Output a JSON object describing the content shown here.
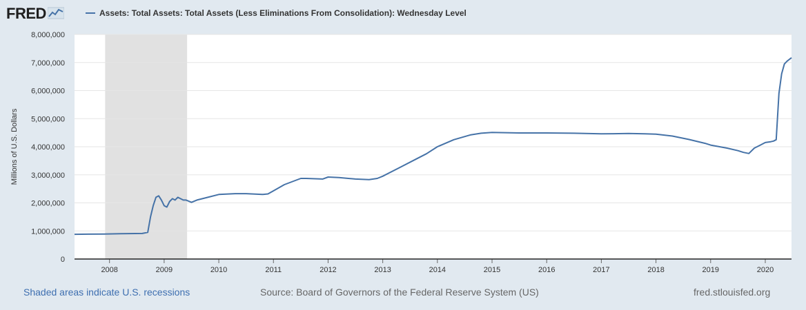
{
  "header": {
    "logo_text": "FRED",
    "logo_icon": "fred-graph-icon",
    "legend_label": "Assets: Total Assets: Total Assets (Less Eliminations From Consolidation): Wednesday Level"
  },
  "footer": {
    "recession_note": "Shaded areas indicate U.S. recessions",
    "source": "Source: Board of Governors of the Federal Reserve System (US)",
    "site": "fred.stlouisfed.org"
  },
  "colors": {
    "background": "#e1e9f0",
    "plot_background": "#ffffff",
    "series": "#4572a7",
    "recession": "#e1e1e1",
    "grid": "#e6e6e6"
  },
  "chart_data": {
    "type": "line",
    "title": "",
    "xlabel": "",
    "ylabel": "Millions of U.S. Dollars",
    "xlim": [
      2007.36,
      2020.48
    ],
    "ylim": [
      0,
      8000000
    ],
    "x_ticks": [
      "2008",
      "2009",
      "2010",
      "2011",
      "2012",
      "2013",
      "2014",
      "2015",
      "2016",
      "2017",
      "2018",
      "2019",
      "2020"
    ],
    "y_ticks": [
      "0",
      "1,000,000",
      "2,000,000",
      "3,000,000",
      "4,000,000",
      "5,000,000",
      "6,000,000",
      "7,000,000",
      "8,000,000"
    ],
    "grid": "horizontal",
    "legend_position": "top-left",
    "recessions": [
      [
        2007.92,
        2009.42
      ]
    ],
    "series": [
      {
        "name": "Assets: Total Assets: Total Assets (Less Eliminations From Consolidation): Wednesday Level",
        "x": [
          2007.36,
          2007.9,
          2008.2,
          2008.6,
          2008.7,
          2008.75,
          2008.8,
          2008.85,
          2008.9,
          2008.95,
          2009.0,
          2009.05,
          2009.1,
          2009.15,
          2009.2,
          2009.25,
          2009.3,
          2009.35,
          2009.4,
          2009.5,
          2009.6,
          2009.7,
          2009.8,
          2010.0,
          2010.3,
          2010.5,
          2010.8,
          2010.9,
          2011.0,
          2011.2,
          2011.5,
          2011.6,
          2011.9,
          2012.0,
          2012.2,
          2012.5,
          2012.75,
          2012.9,
          2013.0,
          2013.3,
          2013.6,
          2013.8,
          2014.0,
          2014.3,
          2014.6,
          2014.8,
          2015.0,
          2015.5,
          2016.0,
          2016.5,
          2017.0,
          2017.5,
          2017.8,
          2018.0,
          2018.3,
          2018.6,
          2018.9,
          2019.0,
          2019.3,
          2019.5,
          2019.6,
          2019.7,
          2019.8,
          2019.9,
          2020.0,
          2020.1,
          2020.15,
          2020.2,
          2020.25,
          2020.3,
          2020.35,
          2020.4,
          2020.48
        ],
        "values": [
          880000,
          890000,
          900000,
          910000,
          950000,
          1500000,
          1900000,
          2200000,
          2250000,
          2100000,
          1900000,
          1850000,
          2050000,
          2150000,
          2100000,
          2200000,
          2150000,
          2100000,
          2100000,
          2020000,
          2100000,
          2150000,
          2200000,
          2300000,
          2330000,
          2330000,
          2300000,
          2320000,
          2430000,
          2650000,
          2870000,
          2870000,
          2850000,
          2920000,
          2900000,
          2850000,
          2830000,
          2870000,
          2950000,
          3250000,
          3550000,
          3750000,
          4000000,
          4250000,
          4420000,
          4480000,
          4510000,
          4490000,
          4490000,
          4480000,
          4460000,
          4470000,
          4460000,
          4450000,
          4380000,
          4260000,
          4120000,
          4060000,
          3950000,
          3860000,
          3800000,
          3760000,
          3950000,
          4050000,
          4150000,
          4180000,
          4200000,
          4250000,
          5900000,
          6600000,
          6950000,
          7050000,
          7170000
        ]
      }
    ]
  }
}
